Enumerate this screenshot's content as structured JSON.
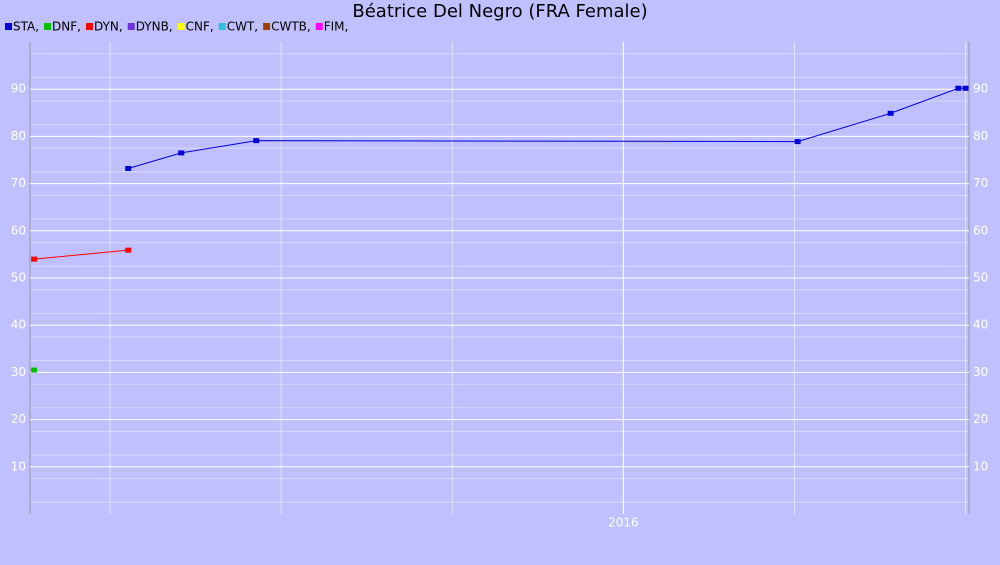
{
  "chart_data": {
    "type": "line",
    "title": "Béatrice Del Negro (FRA Female)",
    "xlim": [
      2014.266,
      2017.01
    ],
    "xticks": [
      {
        "value": 2016,
        "label": "2016"
      }
    ],
    "ylim": [
      0,
      100
    ],
    "yticks": [
      10,
      20,
      30,
      40,
      50,
      60,
      70,
      80,
      90
    ],
    "grid": true,
    "series": [
      {
        "name": "STA,",
        "color": "#0000dd",
        "x": [
          2014.553,
          2014.708,
          2014.927,
          2016.509,
          2016.781,
          2016.979,
          2017.0
        ],
        "values": [
          73.2,
          76.5,
          79.1,
          78.9,
          84.9,
          90.2,
          90.2
        ]
      },
      {
        "name": "DNF,",
        "color": "#00c000",
        "x": [
          2014.278
        ],
        "values": [
          30.5
        ]
      },
      {
        "name": "DYN,",
        "color": "#ff0000",
        "x": [
          2014.278,
          2014.553
        ],
        "values": [
          54.0,
          55.9
        ]
      },
      {
        "name": "DYNB,",
        "color": "#7030e0",
        "x": [],
        "values": []
      },
      {
        "name": "CNF,",
        "color": "#ffff00",
        "x": [],
        "values": []
      },
      {
        "name": "CWT,",
        "color": "#30c0e0",
        "x": [],
        "values": []
      },
      {
        "name": "CWTB,",
        "color": "#a04000",
        "x": [],
        "values": []
      },
      {
        "name": "FIM,",
        "color": "#ff00ff",
        "x": [],
        "values": []
      }
    ]
  }
}
